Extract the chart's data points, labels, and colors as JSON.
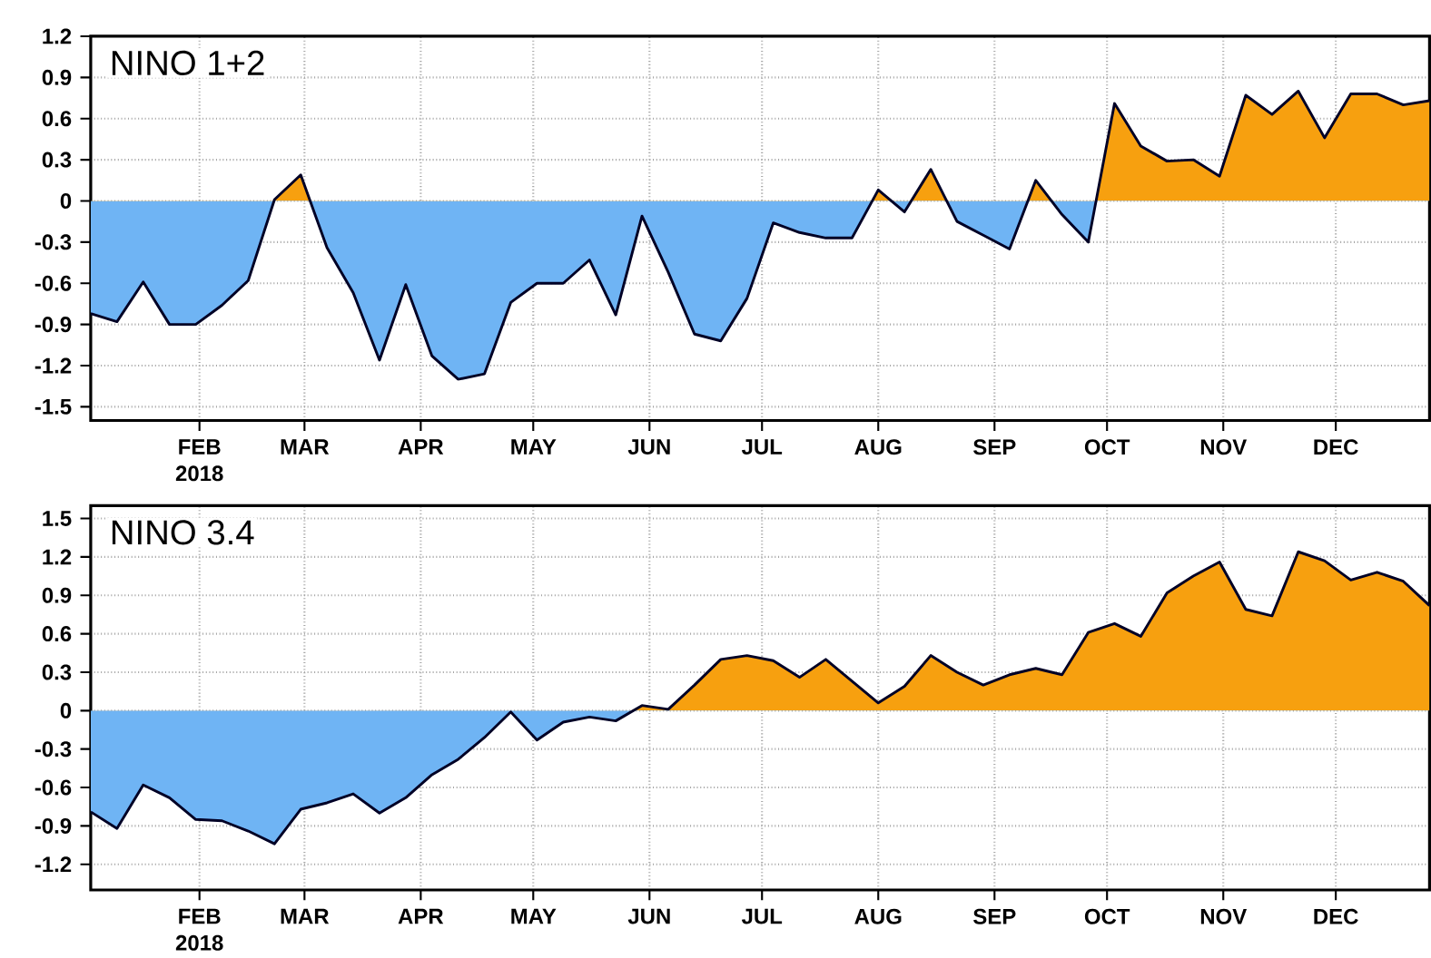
{
  "chart_data": [
    {
      "type": "area",
      "title": "NINO  1+2",
      "x": [
        "2018-01-03",
        "2018-01-10",
        "2018-01-17",
        "2018-01-24",
        "2018-01-31",
        "2018-02-07",
        "2018-02-14",
        "2018-02-21",
        "2018-02-28",
        "2018-03-07",
        "2018-03-14",
        "2018-03-21",
        "2018-03-28",
        "2018-04-04",
        "2018-04-11",
        "2018-04-18",
        "2018-04-25",
        "2018-05-02",
        "2018-05-09",
        "2018-05-16",
        "2018-05-23",
        "2018-05-30",
        "2018-06-06",
        "2018-06-13",
        "2018-06-20",
        "2018-06-27",
        "2018-07-04",
        "2018-07-11",
        "2018-07-18",
        "2018-07-25",
        "2018-08-01",
        "2018-08-08",
        "2018-08-15",
        "2018-08-22",
        "2018-08-29",
        "2018-09-05",
        "2018-09-12",
        "2018-09-19",
        "2018-09-26",
        "2018-10-03",
        "2018-10-10",
        "2018-10-17",
        "2018-10-24",
        "2018-10-31",
        "2018-11-07",
        "2018-11-14",
        "2018-11-21",
        "2018-11-28",
        "2018-12-05",
        "2018-12-12",
        "2018-12-19",
        "2018-12-26"
      ],
      "series": [
        {
          "colors": [
            "#6fb4f4",
            "#6fb4f4",
            "#6fb4f4",
            "#6fb4f4",
            "#6fb4f4",
            "#6fb4f4",
            "#6fb4f4",
            "#f7a00f",
            "#f7a00f",
            "#6fb4f4",
            "#6fb4f4",
            "#6fb4f4",
            "#6fb4f4",
            "#6fb4f4",
            "#6fb4f4",
            "#6fb4f4",
            "#6fb4f4",
            "#6fb4f4",
            "#6fb4f4",
            "#6fb4f4",
            "#6fb4f4",
            "#6fb4f4",
            "#6fb4f4",
            "#6fb4f4",
            "#6fb4f4",
            "#6fb4f4",
            "#6fb4f4",
            "#6fb4f4",
            "#6fb4f4",
            "#6fb4f4",
            "#f7a00f",
            "#6fb4f4",
            "#f7a00f",
            "#6fb4f4",
            "#6fb4f4",
            "#6fb4f4",
            "#f7a00f",
            "#6fb4f4",
            "#6fb4f4",
            "#f7a00f",
            "#f7a00f",
            "#f7a00f",
            "#f7a00f",
            "#f7a00f",
            "#f7a00f",
            "#f7a00f",
            "#f7a00f",
            "#f7a00f",
            "#f7a00f",
            "#f7a00f",
            "#f7a00f",
            "#f7a00f"
          ],
          "values": [
            -0.82,
            -0.88,
            -0.59,
            -0.9,
            -0.9,
            -0.76,
            -0.58,
            0.01,
            0.19,
            -0.34,
            -0.67,
            -1.16,
            -0.61,
            -1.13,
            -1.3,
            -1.26,
            -0.74,
            -0.6,
            -0.6,
            -0.43,
            -0.83,
            -0.11,
            -0.52,
            -0.97,
            -1.02,
            -0.71,
            -0.16,
            -0.23,
            -0.27,
            -0.27,
            0.08,
            -0.08,
            0.23,
            -0.15,
            -0.25,
            -0.35,
            0.15,
            -0.1,
            -0.3,
            0.71,
            0.4,
            0.29,
            0.3,
            0.18,
            0.77,
            0.63,
            0.8,
            0.46,
            0.78,
            0.78,
            0.7,
            0.73
          ]
        }
      ],
      "xlim": [
        "2018-01-03",
        "2018-12-26"
      ],
      "xticks": [
        {
          "value": "2018-02-01",
          "label": "FEB 2018"
        },
        {
          "value": "2018-03-01",
          "label": "MAR"
        },
        {
          "value": "2018-04-01",
          "label": "APR"
        },
        {
          "value": "2018-05-01",
          "label": "MAY"
        },
        {
          "value": "2018-06-01",
          "label": "JUN"
        },
        {
          "value": "2018-07-01",
          "label": "JUL"
        },
        {
          "value": "2018-08-01",
          "label": "AUG"
        },
        {
          "value": "2018-09-01",
          "label": "SEP"
        },
        {
          "value": "2018-10-01",
          "label": "OCT"
        },
        {
          "value": "2018-11-01",
          "label": "NOV"
        },
        {
          "value": "2018-12-01",
          "label": "DEC"
        }
      ],
      "ylim": [
        -1.6,
        1.2
      ],
      "yticks": [
        -1.5,
        -1.2,
        -0.9,
        -0.6,
        -0.3,
        0,
        0.3,
        0.6,
        0.9,
        1.2
      ],
      "grid": true,
      "line_style": "solid"
    },
    {
      "type": "area",
      "title": "NINO  3.4",
      "x": [
        "2018-01-03",
        "2018-01-10",
        "2018-01-17",
        "2018-01-24",
        "2018-01-31",
        "2018-02-07",
        "2018-02-14",
        "2018-02-21",
        "2018-02-28",
        "2018-03-07",
        "2018-03-14",
        "2018-03-21",
        "2018-03-28",
        "2018-04-04",
        "2018-04-11",
        "2018-04-18",
        "2018-04-25",
        "2018-05-02",
        "2018-05-09",
        "2018-05-16",
        "2018-05-23",
        "2018-05-30",
        "2018-06-06",
        "2018-06-13",
        "2018-06-20",
        "2018-06-27",
        "2018-07-04",
        "2018-07-11",
        "2018-07-18",
        "2018-07-25",
        "2018-08-01",
        "2018-08-08",
        "2018-08-15",
        "2018-08-22",
        "2018-08-29",
        "2018-09-05",
        "2018-09-12",
        "2018-09-19",
        "2018-09-26",
        "2018-10-03",
        "2018-10-10",
        "2018-10-17",
        "2018-10-24",
        "2018-10-31",
        "2018-11-07",
        "2018-11-14",
        "2018-11-21",
        "2018-11-28",
        "2018-12-05",
        "2018-12-12",
        "2018-12-19",
        "2018-12-26"
      ],
      "series": [
        {
          "colors": [
            "#6fb4f4",
            "#6fb4f4",
            "#6fb4f4",
            "#6fb4f4",
            "#6fb4f4",
            "#6fb4f4",
            "#6fb4f4",
            "#6fb4f4",
            "#6fb4f4",
            "#6fb4f4",
            "#6fb4f4",
            "#6fb4f4",
            "#6fb4f4",
            "#6fb4f4",
            "#6fb4f4",
            "#6fb4f4",
            "#6fb4f4",
            "#6fb4f4",
            "#6fb4f4",
            "#6fb4f4",
            "#6fb4f4",
            "#f7a00f",
            "#f7a00f",
            "#f7a00f",
            "#f7a00f",
            "#f7a00f",
            "#f7a00f",
            "#f7a00f",
            "#f7a00f",
            "#f7a00f",
            "#f7a00f",
            "#f7a00f",
            "#f7a00f",
            "#f7a00f",
            "#f7a00f",
            "#f7a00f",
            "#f7a00f",
            "#f7a00f",
            "#f7a00f",
            "#f7a00f",
            "#f7a00f",
            "#f7a00f",
            "#f7a00f",
            "#f7a00f",
            "#f7a00f",
            "#f7a00f",
            "#f7a00f",
            "#f7a00f",
            "#f7a00f",
            "#f7a00f",
            "#f7a00f",
            "#f7a00f"
          ],
          "values": [
            -0.79,
            -0.92,
            -0.58,
            -0.68,
            -0.85,
            -0.86,
            -0.94,
            -1.04,
            -0.77,
            -0.72,
            -0.65,
            -0.8,
            -0.68,
            -0.5,
            -0.38,
            -0.21,
            -0.01,
            -0.23,
            -0.09,
            -0.05,
            -0.08,
            0.04,
            0.01,
            0.2,
            0.4,
            0.43,
            0.39,
            0.26,
            0.4,
            0.23,
            0.06,
            0.19,
            0.43,
            0.3,
            0.2,
            0.28,
            0.33,
            0.28,
            0.61,
            0.68,
            0.58,
            0.92,
            1.05,
            1.16,
            0.79,
            0.74,
            1.24,
            1.17,
            1.02,
            1.08,
            1.01,
            0.82
          ]
        }
      ],
      "xlim": [
        "2018-01-03",
        "2018-12-26"
      ],
      "xticks": [
        {
          "value": "2018-02-01",
          "label": "FEB 2018"
        },
        {
          "value": "2018-03-01",
          "label": "MAR"
        },
        {
          "value": "2018-04-01",
          "label": "APR"
        },
        {
          "value": "2018-05-01",
          "label": "MAY"
        },
        {
          "value": "2018-06-01",
          "label": "JUN"
        },
        {
          "value": "2018-07-01",
          "label": "JUL"
        },
        {
          "value": "2018-08-01",
          "label": "AUG"
        },
        {
          "value": "2018-09-01",
          "label": "SEP"
        },
        {
          "value": "2018-10-01",
          "label": "OCT"
        },
        {
          "value": "2018-11-01",
          "label": "NOV"
        },
        {
          "value": "2018-12-01",
          "label": "DEC"
        }
      ],
      "ylim": [
        -1.4,
        1.6
      ],
      "yticks": [
        -1.2,
        -0.9,
        -0.6,
        -0.3,
        0,
        0.3,
        0.6,
        0.9,
        1.2,
        1.5
      ],
      "grid": true,
      "line_style": "solid"
    }
  ]
}
